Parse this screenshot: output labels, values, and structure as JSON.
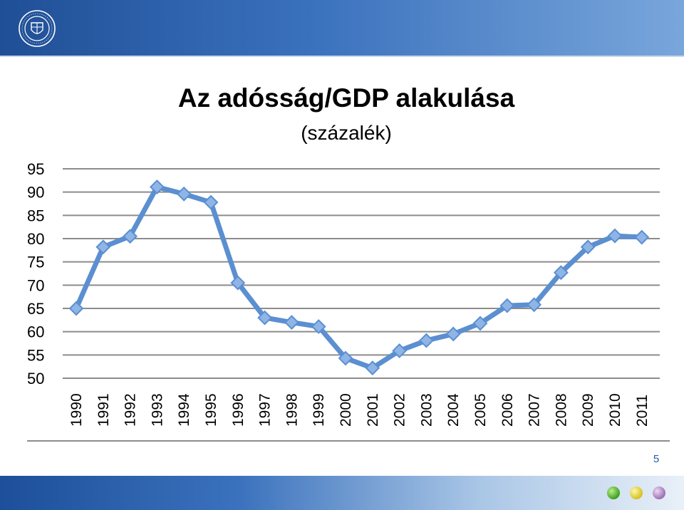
{
  "slide": {
    "page_number": "5",
    "logo": {
      "name": "university-seal",
      "text": "UNIVERSITAS QUINQUEECCLESIENSIS"
    },
    "footer_icons": [
      "green-ball-icon",
      "yellow-ball-icon",
      "purple-ball-icon"
    ]
  },
  "colors": {
    "header_start": "#1f4f96",
    "line": "#5b8fd1",
    "marker": "#8fb4e6",
    "grid": "#8c8c8c"
  },
  "chart_data": {
    "type": "line",
    "title": "Az adósság/GDP alakulása",
    "subtitle": "(százalék)",
    "categories": [
      "1990",
      "1991",
      "1992",
      "1993",
      "1994",
      "1995",
      "1996",
      "1997",
      "1998",
      "1999",
      "2000",
      "2001",
      "2002",
      "2003",
      "2004",
      "2005",
      "2006",
      "2007",
      "2008",
      "2009",
      "2010",
      "2011"
    ],
    "series": [
      {
        "values": [
          65.0,
          78.2,
          80.5,
          91.1,
          89.6,
          87.8,
          70.5,
          63.0,
          62.0,
          61.1,
          54.3,
          52.2,
          55.9,
          58.1,
          59.5,
          61.8,
          65.6,
          65.8,
          72.7,
          78.2,
          80.6,
          80.3
        ]
      }
    ],
    "y_ticks": [
      "95",
      "90",
      "85",
      "80",
      "75",
      "70",
      "65",
      "60",
      "55",
      "50"
    ],
    "ylim": [
      50,
      95
    ],
    "grid": true,
    "legend": "none"
  }
}
